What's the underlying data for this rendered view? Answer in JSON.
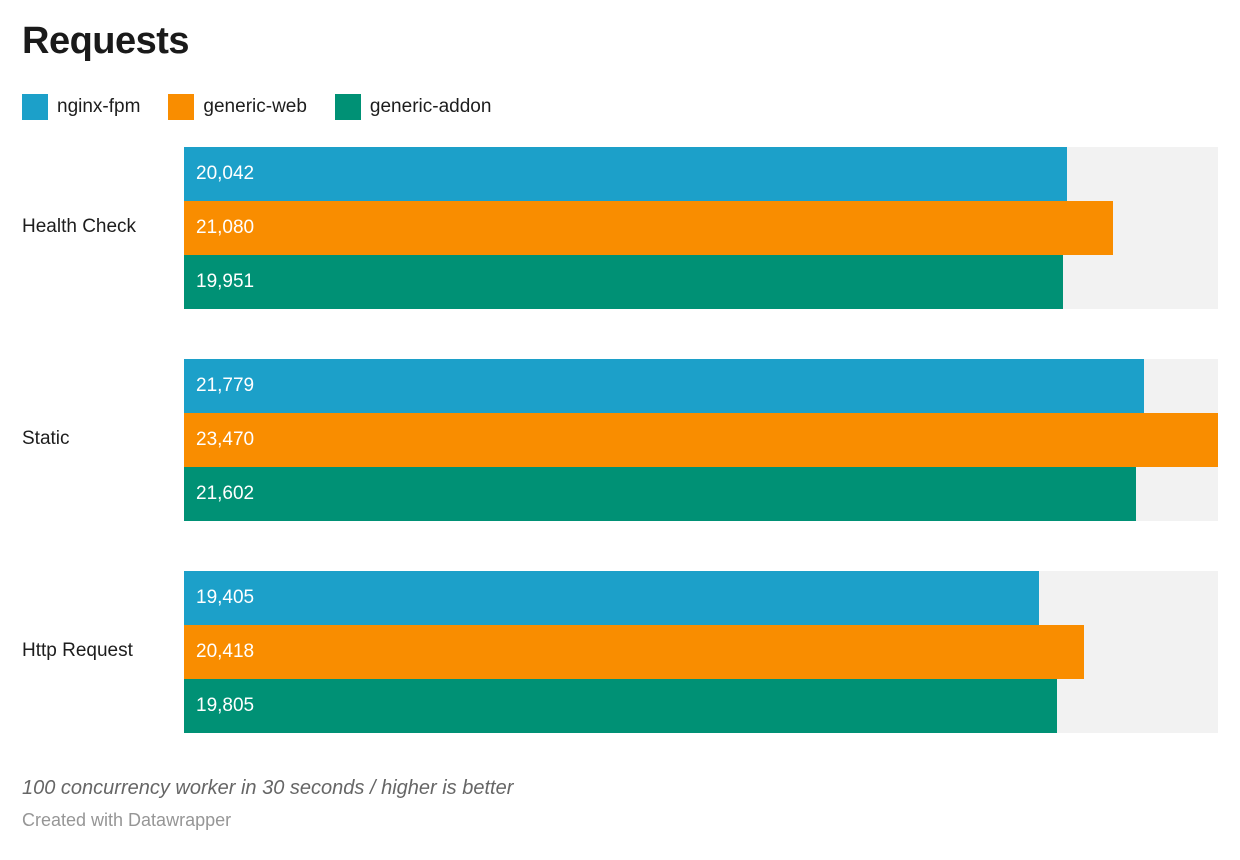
{
  "title": "Requests",
  "footnote": "100 concurrency worker in 30 seconds / higher is better",
  "attribution": "Created with Datawrapper",
  "colors": {
    "track": "#f2f2f2",
    "title_text": "#1a1a1a",
    "label_text": "#1d1d1d",
    "bar_value_text": "#ffffff",
    "footnote_text": "#666666",
    "attribution_text": "#969696"
  },
  "chart_data": {
    "type": "bar",
    "orientation": "horizontal",
    "title": "Requests",
    "categories": [
      "Health Check",
      "Static",
      "Http Request"
    ],
    "series": [
      {
        "name": "nginx-fpm",
        "color": "#1ca0c9",
        "values": [
          20042,
          21779,
          19405
        ]
      },
      {
        "name": "generic-web",
        "color": "#f98d00",
        "values": [
          21080,
          23470,
          20418
        ]
      },
      {
        "name": "generic-addon",
        "color": "#009175",
        "values": [
          19951,
          21602,
          19805
        ]
      }
    ],
    "value_labels": [
      [
        "20,042",
        "21,779",
        "19,405"
      ],
      [
        "21,080",
        "23,470",
        "20,418"
      ],
      [
        "19,951",
        "21,602",
        "19,805"
      ]
    ],
    "xlim": [
      0,
      23470
    ],
    "grid": false,
    "legend_position": "top",
    "note": "higher is better"
  }
}
